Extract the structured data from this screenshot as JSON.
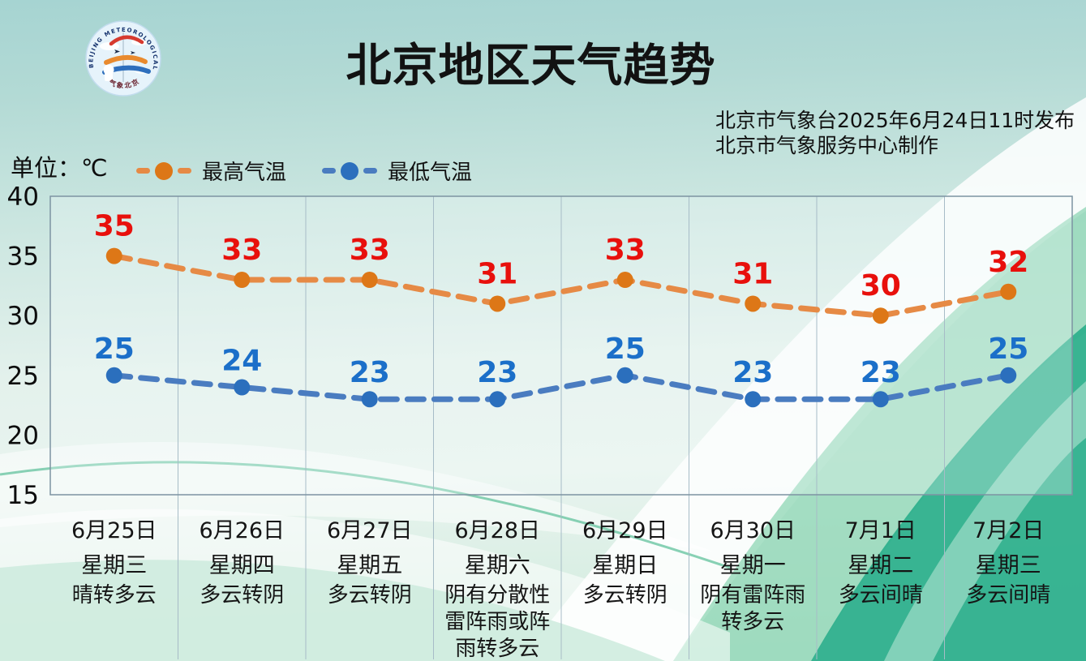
{
  "title": "北京地区天气趋势",
  "unit_label": "单位：℃",
  "issued": {
    "line1": "北京市气象台2025年6月24日11时发布",
    "line2": "北京市气象服务中心制作"
  },
  "logo": {
    "arc_top": "BEIJING METEOROLOGICAL SERVICE",
    "arc_bottom": "气象北京"
  },
  "legend": [
    {
      "label": "最高气温",
      "line_color": "#e68a45",
      "dot_color": "#dd7717"
    },
    {
      "label": "最低气温",
      "line_color": "#4a7cc0",
      "dot_color": "#2b6fbd"
    }
  ],
  "colors": {
    "title": "#121212",
    "tick": "#0d0d0d",
    "grid": "#a7bcc7",
    "border": "#7d93a2",
    "day_text": "#151515"
  },
  "chart_data": {
    "type": "line",
    "title": "北京地区天气趋势",
    "unit": "℃",
    "ylim": [
      15,
      40
    ],
    "yticks": [
      40,
      35,
      30,
      25,
      20,
      15
    ],
    "grid": "vertical-column-separators",
    "legend_position": "top-left",
    "categories": [
      {
        "date": "6月25日",
        "weekday": "星期三",
        "weather": "晴转多云"
      },
      {
        "date": "6月26日",
        "weekday": "星期四",
        "weather": "多云转阴"
      },
      {
        "date": "6月27日",
        "weekday": "星期五",
        "weather": "多云转阴"
      },
      {
        "date": "6月28日",
        "weekday": "星期六",
        "weather": "阴有分散性雷阵雨或阵雨转多云"
      },
      {
        "date": "6月29日",
        "weekday": "星期日",
        "weather": "多云转阴"
      },
      {
        "date": "6月30日",
        "weekday": "星期一",
        "weather": "阴有雷阵雨转多云"
      },
      {
        "date": "7月1日",
        "weekday": "星期二",
        "weather": "多云间晴"
      },
      {
        "date": "7月2日",
        "weekday": "星期三",
        "weather": "多云间晴"
      }
    ],
    "series": [
      {
        "name": "最高气温",
        "values": [
          35,
          33,
          33,
          31,
          33,
          31,
          30,
          32
        ],
        "line_color": "#e68a45",
        "dot_color": "#dd7717",
        "label_color": "#e8100c",
        "label_offset": -38
      },
      {
        "name": "最低气温",
        "values": [
          25,
          24,
          23,
          23,
          25,
          23,
          23,
          25
        ],
        "line_color": "#4a7cc0",
        "dot_color": "#2b6fbd",
        "label_color": "#1b6fc9",
        "label_offset": -34
      }
    ]
  }
}
